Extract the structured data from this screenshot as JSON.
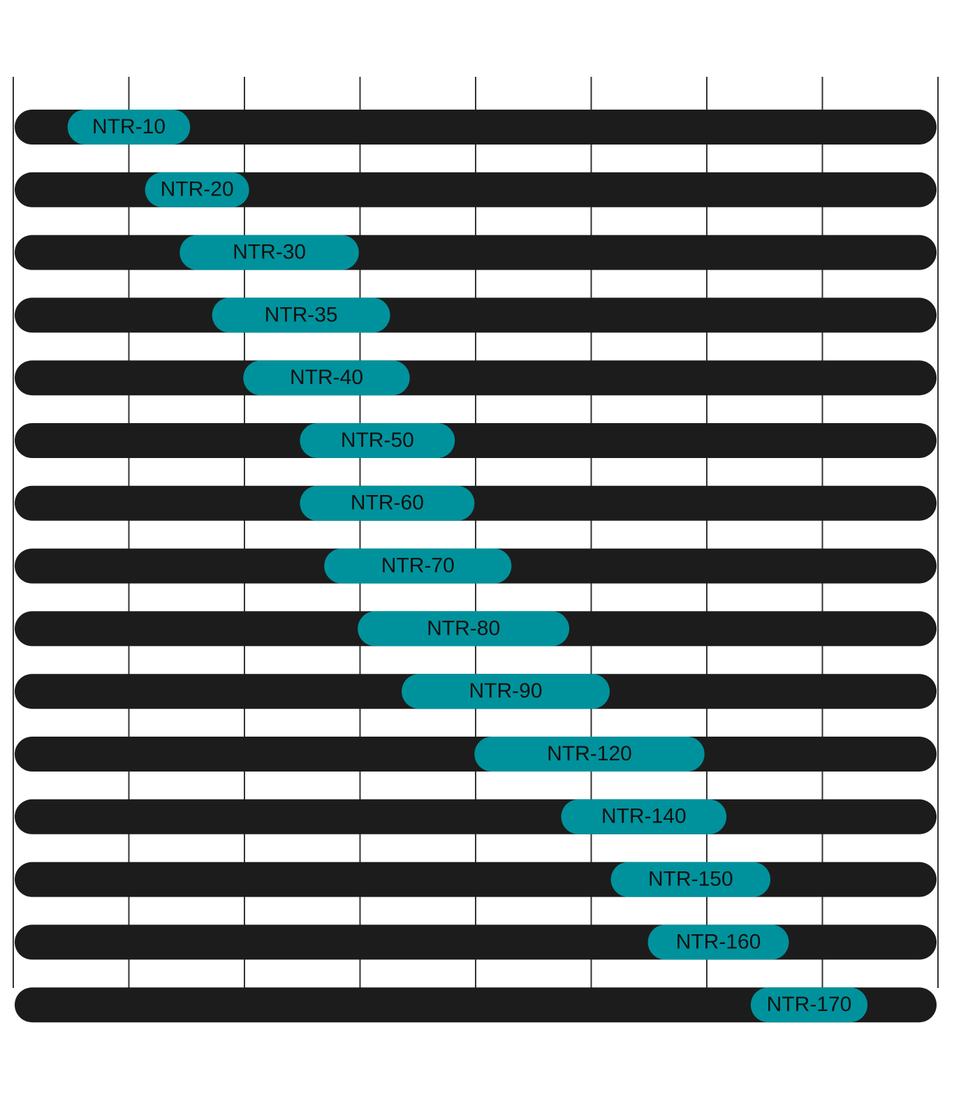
{
  "chart_data": {
    "type": "bar",
    "subtype": "range",
    "orientation": "horizontal",
    "title": "",
    "xlabel": "",
    "ylabel": "",
    "xlim": [
      0,
      8
    ],
    "x_divisions": 8,
    "grid": true,
    "tick_labels_shown": false,
    "legend": "none",
    "colors": {
      "track": "#1c1c1c",
      "range": "#00929c",
      "grid": "#333333",
      "label": "#111111"
    },
    "categories": [
      "NTR-10",
      "NTR-20",
      "NTR-30",
      "NTR-35",
      "NTR-40",
      "NTR-50",
      "NTR-60",
      "NTR-70",
      "NTR-80",
      "NTR-90",
      "NTR-120",
      "NTR-140",
      "NTR-150",
      "NTR-160",
      "NTR-170"
    ],
    "ranges": [
      [
        0.47,
        1.53
      ],
      [
        1.14,
        2.04
      ],
      [
        1.44,
        2.99
      ],
      [
        1.72,
        3.26
      ],
      [
        1.99,
        3.43
      ],
      [
        2.48,
        3.82
      ],
      [
        2.48,
        3.99
      ],
      [
        2.69,
        4.31
      ],
      [
        2.98,
        4.81
      ],
      [
        3.36,
        5.16
      ],
      [
        3.99,
        5.98
      ],
      [
        4.74,
        6.17
      ],
      [
        5.17,
        6.55
      ],
      [
        5.49,
        6.71
      ],
      [
        6.38,
        7.39
      ]
    ]
  }
}
